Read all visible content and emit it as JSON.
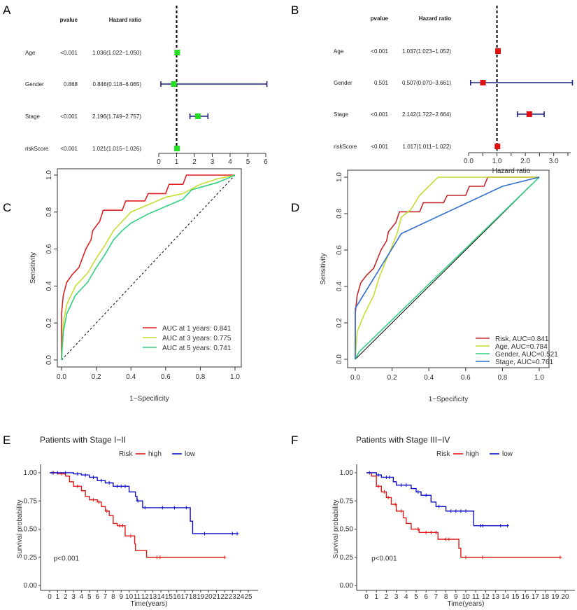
{
  "chart_data": [
    {
      "panel": "A",
      "type": "forest",
      "col_headers": {
        "pvalue": "pvalue",
        "hr": "Hazard ratio"
      },
      "rows": [
        {
          "label": "Age",
          "pvalue": "<0.001",
          "hr_text": "1.036(1.022−1.050)",
          "hr": 1.036,
          "lo": 1.022,
          "hi": 1.05
        },
        {
          "label": "Gender",
          "pvalue": "0.868",
          "hr_text": "0.846(0.118−6.065)",
          "hr": 0.846,
          "lo": 0.118,
          "hi": 6.065
        },
        {
          "label": "Stage",
          "pvalue": "<0.001",
          "hr_text": "2.196(1.749−2.757)",
          "hr": 2.196,
          "lo": 1.749,
          "hi": 2.757
        },
        {
          "label": "riskScore",
          "pvalue": "<0.001",
          "hr_text": "1.021(1.015−1.026)",
          "hr": 1.021,
          "lo": 1.015,
          "hi": 1.026
        }
      ],
      "xticks": [
        "0",
        "1",
        "2",
        "3",
        "4",
        "5",
        "6"
      ],
      "xlim": [
        0,
        6
      ],
      "reference": 1,
      "xlabel": "",
      "marker_color": "#22e022",
      "ci_color": "#1a237e"
    },
    {
      "panel": "B",
      "type": "forest",
      "col_headers": {
        "pvalue": "pvalue",
        "hr": "Hazard ratio"
      },
      "rows": [
        {
          "label": "Age",
          "pvalue": "<0.001",
          "hr_text": "1.037(1.023−1.052)",
          "hr": 1.037,
          "lo": 1.023,
          "hi": 1.052
        },
        {
          "label": "Gender",
          "pvalue": "0.501",
          "hr_text": "0.507(0.070−3.661)",
          "hr": 0.507,
          "lo": 0.07,
          "hi": 3.661
        },
        {
          "label": "Stage",
          "pvalue": "<0.001",
          "hr_text": "2.142(1.722−2.664)",
          "hr": 2.142,
          "lo": 1.722,
          "hi": 2.664
        },
        {
          "label": "riskScore",
          "pvalue": "<0.001",
          "hr_text": "1.017(1.011−1.022)",
          "hr": 1.017,
          "lo": 1.011,
          "hi": 1.022
        }
      ],
      "xticks": [
        "0.0",
        "1.0",
        "2.0",
        "3.0"
      ],
      "xlim": [
        0,
        3.6
      ],
      "reference": 1,
      "xlabel": "Hazard ratio",
      "marker_color": "#e01010",
      "ci_color": "#1a237e"
    },
    {
      "panel": "C",
      "type": "line",
      "xlabel": "1−Specificity",
      "ylabel": "Sensitivity",
      "xticks": [
        "0.0",
        "0.2",
        "0.4",
        "0.6",
        "0.8",
        "1.0"
      ],
      "yticks": [
        "0.0",
        "0.2",
        "0.4",
        "0.6",
        "0.8",
        "1.0"
      ],
      "xlim": [
        0,
        1
      ],
      "ylim": [
        0,
        1
      ],
      "legend_position": "bottom-right",
      "series": [
        {
          "name": "AUC at 1 years: 0.841",
          "color": "#e02020",
          "points": [
            [
              0,
              0
            ],
            [
              0,
              0.25
            ],
            [
              0.01,
              0.35
            ],
            [
              0.03,
              0.42
            ],
            [
              0.06,
              0.46
            ],
            [
              0.1,
              0.5
            ],
            [
              0.12,
              0.55
            ],
            [
              0.14,
              0.6
            ],
            [
              0.17,
              0.65
            ],
            [
              0.18,
              0.7
            ],
            [
              0.22,
              0.75
            ],
            [
              0.24,
              0.81
            ],
            [
              0.35,
              0.81
            ],
            [
              0.37,
              0.86
            ],
            [
              0.48,
              0.86
            ],
            [
              0.5,
              0.9
            ],
            [
              0.6,
              0.9
            ],
            [
              0.62,
              0.95
            ],
            [
              0.7,
              0.95
            ],
            [
              0.72,
              1
            ],
            [
              1,
              1
            ]
          ]
        },
        {
          "name": "AUC at 3 years: 0.775",
          "color": "#c8dc30",
          "points": [
            [
              0,
              0
            ],
            [
              0.01,
              0.2
            ],
            [
              0.03,
              0.3
            ],
            [
              0.08,
              0.4
            ],
            [
              0.15,
              0.47
            ],
            [
              0.2,
              0.55
            ],
            [
              0.25,
              0.62
            ],
            [
              0.3,
              0.7
            ],
            [
              0.35,
              0.75
            ],
            [
              0.4,
              0.8
            ],
            [
              0.5,
              0.84
            ],
            [
              0.6,
              0.88
            ],
            [
              0.7,
              0.9
            ],
            [
              0.8,
              0.95
            ],
            [
              0.9,
              0.98
            ],
            [
              1,
              1
            ]
          ]
        },
        {
          "name": "AUC at 5 years: 0.741",
          "color": "#30d080",
          "points": [
            [
              0,
              0
            ],
            [
              0.01,
              0.15
            ],
            [
              0.03,
              0.25
            ],
            [
              0.08,
              0.35
            ],
            [
              0.15,
              0.42
            ],
            [
              0.2,
              0.5
            ],
            [
              0.25,
              0.57
            ],
            [
              0.3,
              0.65
            ],
            [
              0.35,
              0.7
            ],
            [
              0.4,
              0.74
            ],
            [
              0.5,
              0.79
            ],
            [
              0.6,
              0.83
            ],
            [
              0.7,
              0.87
            ],
            [
              0.75,
              0.92
            ],
            [
              0.9,
              0.96
            ],
            [
              1,
              1
            ]
          ]
        }
      ]
    },
    {
      "panel": "D",
      "type": "line",
      "xlabel": "1−Specificity",
      "ylabel": "Sensitivity",
      "xticks": [
        "0.0",
        "0.2",
        "0.4",
        "0.6",
        "0.8",
        "1.0"
      ],
      "yticks": [
        "0.0",
        "0.2",
        "0.4",
        "0.6",
        "0.8",
        "1.0"
      ],
      "xlim": [
        0,
        1
      ],
      "ylim": [
        0,
        1
      ],
      "legend_position": "bottom-right",
      "series": [
        {
          "name": "Risk, AUC=0.841",
          "color": "#c0282a",
          "points": [
            [
              0,
              0
            ],
            [
              0,
              0.25
            ],
            [
              0.01,
              0.35
            ],
            [
              0.03,
              0.42
            ],
            [
              0.06,
              0.46
            ],
            [
              0.1,
              0.5
            ],
            [
              0.12,
              0.55
            ],
            [
              0.14,
              0.6
            ],
            [
              0.17,
              0.65
            ],
            [
              0.18,
              0.7
            ],
            [
              0.22,
              0.75
            ],
            [
              0.24,
              0.81
            ],
            [
              0.35,
              0.81
            ],
            [
              0.37,
              0.86
            ],
            [
              0.48,
              0.86
            ],
            [
              0.5,
              0.9
            ],
            [
              0.6,
              0.9
            ],
            [
              0.62,
              0.95
            ],
            [
              0.7,
              0.95
            ],
            [
              0.72,
              1
            ],
            [
              1,
              1
            ]
          ]
        },
        {
          "name": "Age, AUC=0.784",
          "color": "#c8dc30",
          "points": [
            [
              0,
              0
            ],
            [
              0.01,
              0.15
            ],
            [
              0.05,
              0.25
            ],
            [
              0.1,
              0.35
            ],
            [
              0.13,
              0.45
            ],
            [
              0.17,
              0.55
            ],
            [
              0.2,
              0.62
            ],
            [
              0.23,
              0.7
            ],
            [
              0.25,
              0.78
            ],
            [
              0.3,
              0.82
            ],
            [
              0.35,
              0.9
            ],
            [
              0.4,
              0.95
            ],
            [
              0.45,
              1
            ],
            [
              1,
              1
            ]
          ]
        },
        {
          "name": "Gender, AUC=0.521",
          "color": "#30d080",
          "points": [
            [
              0,
              0
            ],
            [
              0.02,
              0.04
            ],
            [
              1,
              1
            ]
          ]
        },
        {
          "name": "Stage, AUC=0.761",
          "color": "#2f6fd0",
          "points": [
            [
              0,
              0
            ],
            [
              0,
              0.28
            ],
            [
              0.25,
              0.69
            ],
            [
              0.8,
              0.95
            ],
            [
              1,
              1
            ]
          ]
        }
      ]
    },
    {
      "panel": "E",
      "type": "line",
      "subtype": "kaplan-meier",
      "title": "Patients with Stage I−II",
      "legend_title": "Risk",
      "xlabel": "Time(years)",
      "ylabel": "Survival probability",
      "annotation": "p<0.001",
      "xlim": [
        0,
        25
      ],
      "ylim": [
        0,
        1
      ],
      "xticks": [
        "0",
        "1",
        "2",
        "3",
        "4",
        "5",
        "6",
        "7",
        "8",
        "9",
        "10",
        "11",
        "12",
        "13",
        "14",
        "15",
        "16",
        "17",
        "18",
        "19",
        "20",
        "21",
        "22",
        "23",
        "24",
        "25"
      ],
      "yticks": [
        "0.00",
        "0.25",
        "0.50",
        "0.75",
        "1.00"
      ],
      "series": [
        {
          "name": "high",
          "color": "#e01818",
          "steps": [
            [
              0,
              1
            ],
            [
              1,
              0.99
            ],
            [
              2,
              0.97
            ],
            [
              2.5,
              0.92
            ],
            [
              3,
              0.88
            ],
            [
              4,
              0.84
            ],
            [
              4.5,
              0.79
            ],
            [
              5,
              0.76
            ],
            [
              6,
              0.74
            ],
            [
              6.5,
              0.7
            ],
            [
              7,
              0.66
            ],
            [
              7.5,
              0.62
            ],
            [
              8,
              0.55
            ],
            [
              8.5,
              0.53
            ],
            [
              9.5,
              0.44
            ],
            [
              10.7,
              0.37
            ],
            [
              10.8,
              0.31
            ],
            [
              12.2,
              0.25
            ]
          ],
          "end": 22,
          "censored": [
            0.5,
            1.5,
            3.5,
            5.5,
            6.2,
            7.2,
            8.8,
            9.2,
            10.2,
            13.5,
            13.9,
            22
          ]
        },
        {
          "name": "low",
          "color": "#1010c8",
          "steps": [
            [
              0,
              1
            ],
            [
              3,
              0.99
            ],
            [
              4,
              0.98
            ],
            [
              5,
              0.96
            ],
            [
              6,
              0.93
            ],
            [
              7,
              0.91
            ],
            [
              8,
              0.88
            ],
            [
              10,
              0.83
            ],
            [
              10.8,
              0.79
            ],
            [
              11,
              0.75
            ],
            [
              11.7,
              0.69
            ],
            [
              17.7,
              0.57
            ],
            [
              18,
              0.46
            ]
          ],
          "end": 23.6,
          "censored": [
            0.3,
            1,
            2,
            3.5,
            4.5,
            5.5,
            6.5,
            7.5,
            8.5,
            9,
            9.5,
            11.1,
            12,
            14.2,
            15.7,
            17.2,
            19.5,
            23,
            23.6
          ]
        }
      ]
    },
    {
      "panel": "F",
      "type": "line",
      "subtype": "kaplan-meier",
      "title": "Patients with Stage III−IV",
      "legend_title": "Risk",
      "xlabel": "Time(years)",
      "ylabel": "Survival probability",
      "annotation": "p<0.001",
      "xlim": [
        0,
        20
      ],
      "ylim": [
        0,
        1
      ],
      "xticks": [
        "0",
        "1",
        "2",
        "3",
        "4",
        "5",
        "6",
        "7",
        "8",
        "9",
        "10",
        "11",
        "12",
        "13",
        "14",
        "15",
        "16",
        "17",
        "18",
        "19",
        "20"
      ],
      "yticks": [
        "0.00",
        "0.25",
        "0.50",
        "0.75",
        "1.00"
      ],
      "series": [
        {
          "name": "high",
          "color": "#e01818",
          "steps": [
            [
              0,
              1
            ],
            [
              0.5,
              0.97
            ],
            [
              1,
              0.88
            ],
            [
              1.5,
              0.83
            ],
            [
              2,
              0.78
            ],
            [
              2.5,
              0.72
            ],
            [
              3,
              0.66
            ],
            [
              3.7,
              0.6
            ],
            [
              4,
              0.55
            ],
            [
              4.5,
              0.5
            ],
            [
              5.3,
              0.47
            ],
            [
              7.2,
              0.41
            ],
            [
              9.3,
              0.33
            ],
            [
              9.5,
              0.25
            ]
          ],
          "end": 19.5,
          "censored": [
            1.2,
            1.8,
            2.2,
            2.9,
            3.5,
            5.2,
            6,
            6.5,
            7,
            8,
            8.3,
            10,
            11.7,
            19.5
          ]
        },
        {
          "name": "low",
          "color": "#1010c8",
          "steps": [
            [
              0,
              1
            ],
            [
              1,
              0.98
            ],
            [
              1.5,
              0.96
            ],
            [
              2.7,
              0.92
            ],
            [
              3,
              0.89
            ],
            [
              4.5,
              0.86
            ],
            [
              5,
              0.83
            ],
            [
              5.5,
              0.8
            ],
            [
              6.5,
              0.74
            ],
            [
              7,
              0.7
            ],
            [
              8,
              0.66
            ],
            [
              10.8,
              0.53
            ]
          ],
          "end": 14.2,
          "censored": [
            0.3,
            1.2,
            2,
            2.3,
            3.5,
            4,
            5.2,
            6,
            7.3,
            8.5,
            9,
            9.5,
            10,
            11.5,
            11.7,
            13.5,
            14.2
          ]
        }
      ]
    }
  ]
}
